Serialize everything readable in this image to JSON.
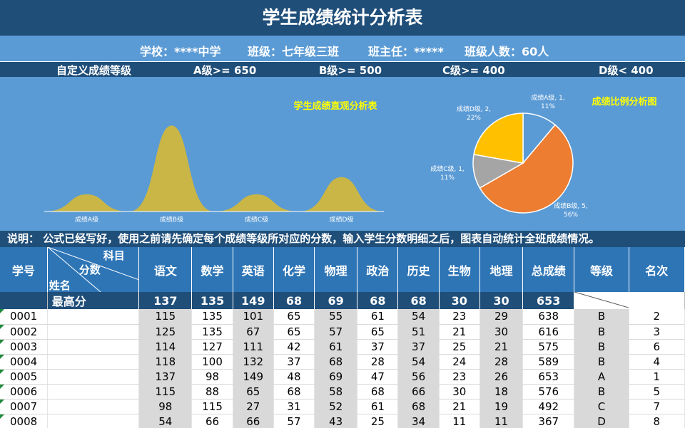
{
  "title": "学生成绩统计分析表",
  "info": {
    "school": "学校：****中学",
    "class": "班级：七年级三班",
    "teacher": "班主任：*****",
    "count": "班级人数：60人"
  },
  "grade_def": {
    "label": "自定义成绩等级",
    "a": "A级>= 650",
    "b": "B级>= 500",
    "c": "C级>= 400",
    "d": "D级< 400"
  },
  "colors": {
    "dark_blue": "#1f4e79",
    "mid_blue": "#5b9bd5",
    "header_blue": "#2e75b6",
    "mountain": "#c9b646",
    "pie_a": "#5b9bd5",
    "pie_b": "#ed7d31",
    "pie_c": "#a5a5a5",
    "pie_d": "#ffc000",
    "chart_title": "#ffff00"
  },
  "chart_data": [
    {
      "type": "area",
      "title": "学生成绩直观分析表",
      "categories": [
        "成绩A级",
        "成绩B级",
        "成绩C级",
        "成绩D级"
      ],
      "values": [
        1,
        5,
        1,
        2
      ],
      "ylim": [
        0,
        5.2
      ]
    },
    {
      "type": "pie",
      "title": "成绩比例分析图",
      "slices": [
        {
          "name": "成绩A级",
          "value": 1,
          "percent": "11%"
        },
        {
          "name": "成绩B级",
          "value": 5,
          "percent": "56%"
        },
        {
          "name": "成绩C级",
          "value": 1,
          "percent": "11%"
        },
        {
          "name": "成绩D级",
          "value": 2,
          "percent": "22%"
        }
      ]
    }
  ],
  "note": "说明：  公式已经写好，使用之前请先确定每个成绩等级所对应的分数，输入学生分数明细之后，图表自动统计全班成绩情况。",
  "table": {
    "header": {
      "id": "学号",
      "diag_subject": "科目",
      "diag_score": "分数",
      "diag_name": "姓名",
      "subjects": [
        "语文",
        "数学",
        "英语",
        "化学",
        "物理",
        "政治",
        "历史",
        "生物",
        "地理"
      ],
      "total": "总成绩",
      "grade": "等级",
      "rank": "名次"
    },
    "max_row": {
      "label": "最高分",
      "values": [
        "137",
        "135",
        "149",
        "68",
        "69",
        "68",
        "68",
        "30",
        "30",
        "653"
      ]
    },
    "rows": [
      {
        "id": "0001",
        "scores": [
          "115",
          "135",
          "101",
          "65",
          "55",
          "61",
          "54",
          "23",
          "29"
        ],
        "total": "638",
        "grade": "B",
        "rank": "2"
      },
      {
        "id": "0002",
        "scores": [
          "125",
          "135",
          "67",
          "65",
          "57",
          "65",
          "51",
          "21",
          "30"
        ],
        "total": "616",
        "grade": "B",
        "rank": "3"
      },
      {
        "id": "0003",
        "scores": [
          "114",
          "127",
          "111",
          "42",
          "61",
          "37",
          "37",
          "25",
          "21"
        ],
        "total": "575",
        "grade": "B",
        "rank": "6"
      },
      {
        "id": "0004",
        "scores": [
          "118",
          "100",
          "132",
          "37",
          "68",
          "28",
          "54",
          "24",
          "28"
        ],
        "total": "589",
        "grade": "B",
        "rank": "4"
      },
      {
        "id": "0005",
        "scores": [
          "137",
          "98",
          "149",
          "48",
          "69",
          "47",
          "56",
          "23",
          "26"
        ],
        "total": "653",
        "grade": "A",
        "rank": "1"
      },
      {
        "id": "0006",
        "scores": [
          "115",
          "88",
          "65",
          "68",
          "58",
          "68",
          "66",
          "30",
          "18"
        ],
        "total": "576",
        "grade": "B",
        "rank": "5"
      },
      {
        "id": "0007",
        "scores": [
          "98",
          "115",
          "27",
          "31",
          "52",
          "61",
          "68",
          "21",
          "19"
        ],
        "total": "492",
        "grade": "C",
        "rank": "7"
      },
      {
        "id": "0008",
        "scores": [
          "54",
          "66",
          "66",
          "57",
          "43",
          "25",
          "34",
          "11",
          "11"
        ],
        "total": "367",
        "grade": "D",
        "rank": "8"
      }
    ]
  }
}
